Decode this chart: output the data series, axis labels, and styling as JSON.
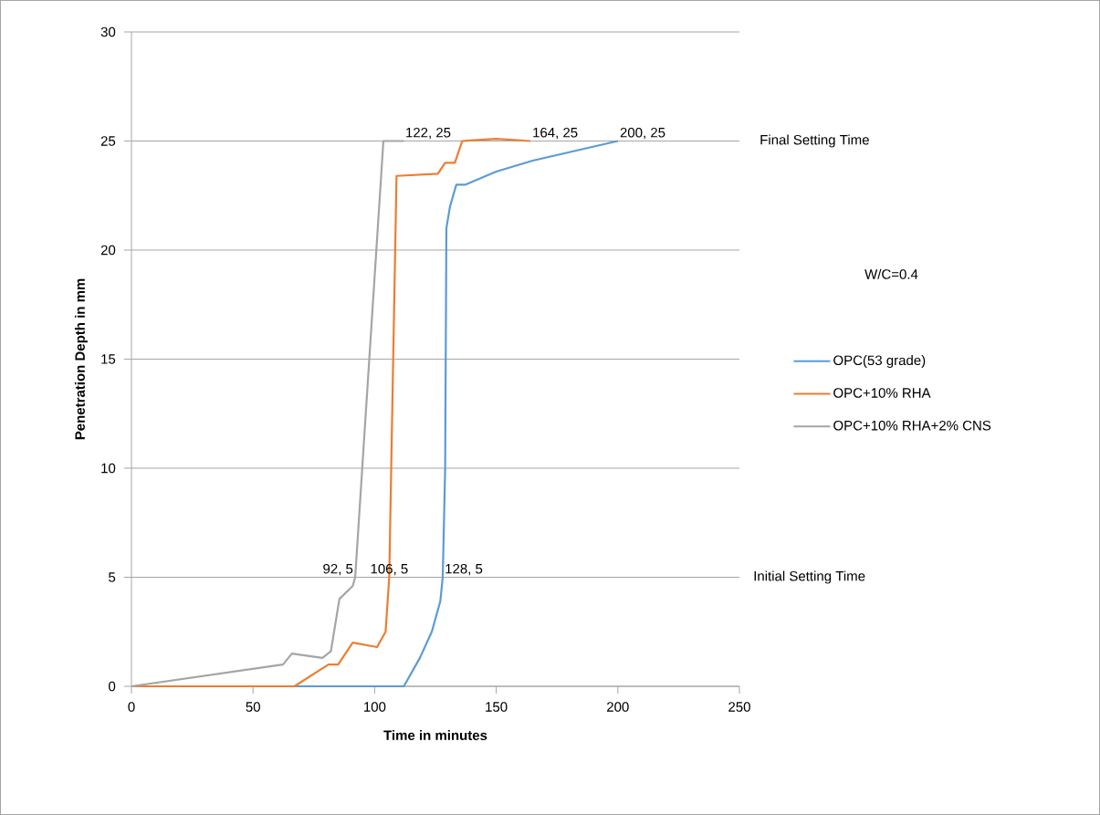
{
  "chart_data": {
    "type": "line",
    "xlabel": "Time in minutes",
    "ylabel": "Penetration Depth in mm",
    "xlim": [
      0,
      250
    ],
    "xticks": [
      0,
      50,
      100,
      150,
      200,
      250
    ],
    "ylim": [
      0,
      30
    ],
    "yticks": [
      0,
      5,
      10,
      15,
      20,
      25,
      30
    ],
    "grid": "y",
    "legend": "right",
    "marker": "none",
    "line_style": "solid",
    "series": [
      {
        "name": "OPC(53 grade)",
        "color": "#5b9bd5",
        "x": [
          0,
          112,
          118.6,
          123.5,
          127,
          128,
          129,
          129.5,
          131,
          133.6,
          137.4,
          150,
          165,
          200
        ],
        "values": [
          0,
          0,
          1.3,
          2.5,
          3.9,
          5,
          10,
          21,
          22,
          23,
          23,
          23.6,
          24.1,
          25
        ]
      },
      {
        "name": "OPC+10% RHA",
        "color": "#ed7d31",
        "x": [
          0,
          67,
          81,
          85,
          91,
          101,
          104.5,
          106,
          109,
          126,
          129,
          133,
          136,
          150,
          164
        ],
        "values": [
          0,
          0,
          1,
          1,
          2,
          1.8,
          2.5,
          5,
          23.4,
          23.5,
          24,
          24,
          25,
          25.1,
          25
        ]
      },
      {
        "name": "OPC+10% RHA+2% CNS",
        "color": "#a5a5a5",
        "x": [
          0,
          62.3,
          66,
          78.5,
          82,
          85.5,
          91,
          92,
          103.6,
          112
        ],
        "values": [
          0,
          1,
          1.5,
          1.3,
          1.6,
          4,
          4.6,
          5,
          25,
          25
        ]
      }
    ],
    "annotations": [
      {
        "text": "92, 5",
        "x": 92,
        "y": 5
      },
      {
        "text": "106, 5",
        "x": 106,
        "y": 5
      },
      {
        "text": "128, 5",
        "x": 128,
        "y": 5
      },
      "122, 25",
      {
        "text": "164, 25",
        "x": 164,
        "y": 25
      },
      {
        "text": "200, 25",
        "x": 200,
        "y": 25
      },
      "Final Setting Time",
      "Initial Setting Time",
      "W/C=0.4"
    ]
  }
}
